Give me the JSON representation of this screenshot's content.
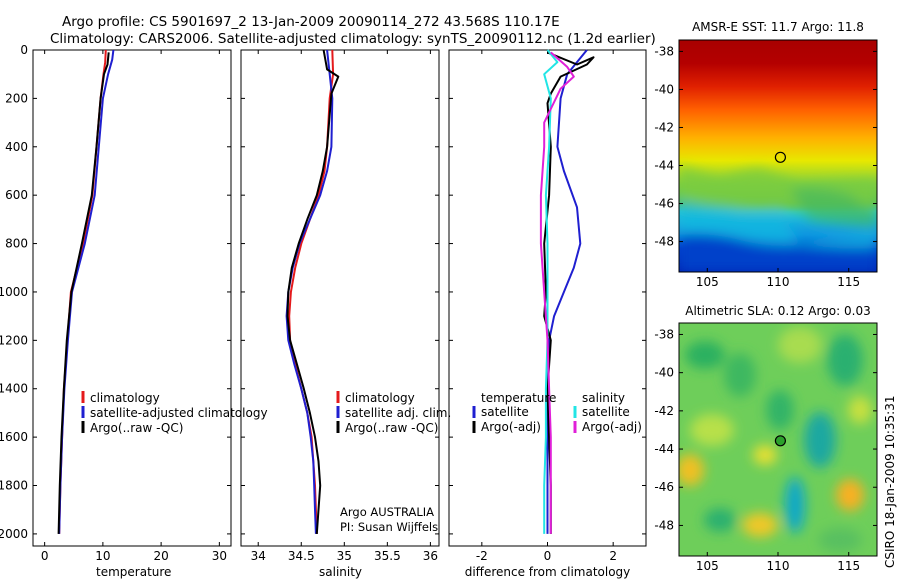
{
  "figure": {
    "title_line1": "Argo profile: CS 5901697_2 13-Jan-2009 20090114_272 43.568S 110.17E",
    "title_line2": "Climatology: CARS2006. Satellite-adjusted climatology: synTS_20090112.nc (1.2d earlier)",
    "credit": "CSIRO 18-Jan-2009 10:35:31",
    "agency_line1": "Argo AUSTRALIA",
    "agency_line2": "PI: Susan Wijffels"
  },
  "colors": {
    "climatology": "#e41a1c",
    "satellite": "#1f1fd0",
    "argo": "#000000",
    "satellite_salinity": "#22e5e5",
    "argo_salinity": "#e020d8"
  },
  "chart_data": [
    {
      "type": "line",
      "name": "temperature-profile",
      "xlabel": "temperature",
      "ylabel": "",
      "xlim": [
        -2,
        32
      ],
      "ylim": [
        2050,
        0
      ],
      "xticks": [
        0,
        10,
        20,
        30
      ],
      "yticks": [
        0,
        200,
        400,
        600,
        800,
        1000,
        1200,
        1400,
        1600,
        1800,
        2000
      ],
      "legend": [
        "climatology",
        "satellite-adjusted climatology",
        "Argo(..raw -QC)"
      ],
      "series": [
        {
          "name": "climatology",
          "color": "climatology",
          "points": [
            [
              10.5,
              0
            ],
            [
              10.4,
              50
            ],
            [
              10.1,
              100
            ],
            [
              9.6,
              200
            ],
            [
              8.9,
              400
            ],
            [
              8.2,
              600
            ],
            [
              6.6,
              800
            ],
            [
              4.5,
              1000
            ],
            [
              3.9,
              1200
            ],
            [
              3.3,
              1400
            ],
            [
              3.0,
              1600
            ],
            [
              2.7,
              1800
            ],
            [
              2.5,
              2000
            ]
          ]
        },
        {
          "name": "satellite-adjusted climatology",
          "color": "satellite",
          "points": [
            [
              11.8,
              0
            ],
            [
              11.6,
              40
            ],
            [
              10.9,
              100
            ],
            [
              10.0,
              200
            ],
            [
              9.3,
              400
            ],
            [
              8.6,
              600
            ],
            [
              6.9,
              800
            ],
            [
              4.7,
              1000
            ],
            [
              4.0,
              1200
            ],
            [
              3.4,
              1400
            ],
            [
              3.0,
              1600
            ],
            [
              2.7,
              1800
            ],
            [
              2.5,
              2000
            ]
          ]
        },
        {
          "name": "Argo(..raw -QC)",
          "color": "argo",
          "points": [
            [
              11.0,
              10
            ],
            [
              10.8,
              60
            ],
            [
              10.2,
              100
            ],
            [
              9.6,
              200
            ],
            [
              8.9,
              400
            ],
            [
              8.1,
              600
            ],
            [
              6.4,
              800
            ],
            [
              4.6,
              1000
            ],
            [
              3.8,
              1200
            ],
            [
              3.3,
              1400
            ],
            [
              2.9,
              1600
            ],
            [
              2.6,
              1800
            ],
            [
              2.4,
              2000
            ]
          ]
        }
      ]
    },
    {
      "type": "line",
      "name": "salinity-profile",
      "xlabel": "salinity",
      "ylabel": "",
      "xlim": [
        33.8,
        36.1
      ],
      "ylim": [
        2050,
        0
      ],
      "xticks": [
        34,
        34.5,
        35,
        35.5,
        36
      ],
      "xtick_labels": [
        "34",
        "34.5",
        "35",
        "35.5",
        "36"
      ],
      "yticks": [
        0,
        200,
        400,
        600,
        800,
        1000,
        1200,
        1400,
        1600,
        1800,
        2000
      ],
      "legend": [
        "climatology",
        "satellite adj. clim.",
        "Argo(..raw -QC)"
      ],
      "series": [
        {
          "name": "climatology",
          "color": "climatology",
          "points": [
            [
              34.86,
              0
            ],
            [
              34.87,
              100
            ],
            [
              34.83,
              200
            ],
            [
              34.8,
              400
            ],
            [
              34.77,
              500
            ],
            [
              34.7,
              600
            ],
            [
              34.6,
              700
            ],
            [
              34.5,
              800
            ],
            [
              34.43,
              900
            ],
            [
              34.38,
              1000
            ],
            [
              34.36,
              1100
            ],
            [
              34.37,
              1200
            ],
            [
              34.43,
              1300
            ],
            [
              34.5,
              1400
            ],
            [
              34.57,
              1500
            ],
            [
              34.62,
              1600
            ],
            [
              34.64,
              1700
            ],
            [
              34.66,
              1800
            ],
            [
              34.67,
              1900
            ],
            [
              34.68,
              2000
            ]
          ]
        },
        {
          "name": "satellite adj. clim.",
          "color": "satellite",
          "points": [
            [
              34.8,
              0
            ],
            [
              34.83,
              100
            ],
            [
              34.86,
              200
            ],
            [
              34.85,
              400
            ],
            [
              34.8,
              500
            ],
            [
              34.72,
              600
            ],
            [
              34.6,
              700
            ],
            [
              34.48,
              800
            ],
            [
              34.4,
              900
            ],
            [
              34.35,
              1000
            ],
            [
              34.33,
              1100
            ],
            [
              34.35,
              1200
            ],
            [
              34.42,
              1300
            ],
            [
              34.5,
              1400
            ],
            [
              34.57,
              1500
            ],
            [
              34.61,
              1600
            ],
            [
              34.64,
              1700
            ],
            [
              34.65,
              1800
            ],
            [
              34.66,
              1900
            ],
            [
              34.67,
              2000
            ]
          ]
        },
        {
          "name": "Argo(..raw -QC)",
          "color": "argo",
          "points": [
            [
              34.76,
              0
            ],
            [
              34.8,
              80
            ],
            [
              34.93,
              110
            ],
            [
              34.85,
              180
            ],
            [
              34.8,
              400
            ],
            [
              34.75,
              500
            ],
            [
              34.68,
              600
            ],
            [
              34.57,
              700
            ],
            [
              34.47,
              800
            ],
            [
              34.39,
              900
            ],
            [
              34.35,
              1000
            ],
            [
              34.34,
              1100
            ],
            [
              34.37,
              1200
            ],
            [
              34.45,
              1300
            ],
            [
              34.53,
              1400
            ],
            [
              34.6,
              1500
            ],
            [
              34.66,
              1600
            ],
            [
              34.7,
              1700
            ],
            [
              34.72,
              1800
            ],
            [
              34.7,
              1900
            ],
            [
              34.68,
              2000
            ]
          ]
        }
      ]
    },
    {
      "type": "line",
      "name": "difference-profile",
      "xlabel": "difference from climatology",
      "ylabel": "",
      "xlim": [
        -3,
        3
      ],
      "ylim": [
        2050,
        0
      ],
      "xticks": [
        -2,
        0,
        2
      ],
      "yticks": [
        0,
        200,
        400,
        600,
        800,
        1000,
        1200,
        1400,
        1600,
        1800,
        2000
      ],
      "legend_headers": [
        "temperature",
        "salinity"
      ],
      "legend": [
        "satellite",
        "Argo(-adj)",
        "satellite",
        "Argo(-adj)"
      ],
      "series": [
        {
          "name": "satellite",
          "group": "temperature",
          "color": "satellite",
          "points": [
            [
              1.2,
              0
            ],
            [
              0.9,
              50
            ],
            [
              0.6,
              100
            ],
            [
              0.4,
              200
            ],
            [
              0.3,
              400
            ],
            [
              0.5,
              500
            ],
            [
              0.9,
              650
            ],
            [
              1.0,
              800
            ],
            [
              0.8,
              900
            ],
            [
              0.5,
              1000
            ],
            [
              0.2,
              1100
            ],
            [
              0.05,
              1200
            ],
            [
              0.0,
              1400
            ],
            [
              0.0,
              2000
            ]
          ]
        },
        {
          "name": "Argo(-adj)",
          "group": "temperature",
          "color": "argo",
          "points": [
            [
              0.0,
              10
            ],
            [
              0.9,
              60
            ],
            [
              1.4,
              30
            ],
            [
              1.2,
              60
            ],
            [
              0.4,
              110
            ],
            [
              0.1,
              180
            ],
            [
              0.0,
              220
            ],
            [
              0.1,
              400
            ],
            [
              0.05,
              600
            ],
            [
              -0.1,
              800
            ],
            [
              -0.05,
              1000
            ],
            [
              -0.1,
              1100
            ],
            [
              0.1,
              1200
            ],
            [
              0.0,
              1400
            ],
            [
              0.05,
              1600
            ],
            [
              0.1,
              1800
            ],
            [
              0.1,
              2000
            ]
          ]
        },
        {
          "name": "satellite",
          "group": "salinity",
          "color": "satellite_salinity",
          "points": [
            [
              0.0,
              0
            ],
            [
              0.3,
              50
            ],
            [
              -0.1,
              100
            ],
            [
              0.1,
              200
            ],
            [
              0.05,
              400
            ],
            [
              -0.05,
              600
            ],
            [
              0.0,
              800
            ],
            [
              0.0,
              1000
            ],
            [
              0.0,
              1200
            ],
            [
              -0.05,
              1400
            ],
            [
              -0.05,
              1600
            ],
            [
              -0.1,
              1800
            ],
            [
              -0.1,
              2000
            ]
          ]
        },
        {
          "name": "Argo(-adj)",
          "group": "salinity",
          "color": "argo_salinity",
          "points": [
            [
              0.1,
              10
            ],
            [
              0.6,
              70
            ],
            [
              0.8,
              110
            ],
            [
              0.4,
              160
            ],
            [
              -0.1,
              300
            ],
            [
              -0.1,
              400
            ],
            [
              -0.2,
              600
            ],
            [
              -0.2,
              800
            ],
            [
              -0.1,
              1000
            ],
            [
              0.0,
              1200
            ],
            [
              0.05,
              1400
            ],
            [
              0.1,
              1600
            ],
            [
              0.1,
              1800
            ],
            [
              0.1,
              2000
            ]
          ]
        }
      ]
    },
    {
      "type": "heatmap",
      "name": "sst-map",
      "title": "AMSR-E SST: 11.7 Argo: 11.8",
      "xlim": [
        103,
        117
      ],
      "ylim": [
        -49.6,
        -37.4
      ],
      "xticks": [
        105,
        110,
        115
      ],
      "yticks": [
        -38,
        -40,
        -42,
        -44,
        -46,
        -48
      ],
      "argo_position": [
        110.17,
        -43.568
      ],
      "argo_value": 11.8
    },
    {
      "type": "heatmap",
      "name": "sla-map",
      "title": "Altimetric SLA: 0.12 Argo: 0.03",
      "xlim": [
        103,
        117
      ],
      "ylim": [
        -49.6,
        -37.4
      ],
      "xticks": [
        105,
        110,
        115
      ],
      "yticks": [
        -38,
        -40,
        -42,
        -44,
        -46,
        -48
      ],
      "argo_position": [
        110.17,
        -43.568
      ],
      "argo_value": 0.03
    }
  ]
}
